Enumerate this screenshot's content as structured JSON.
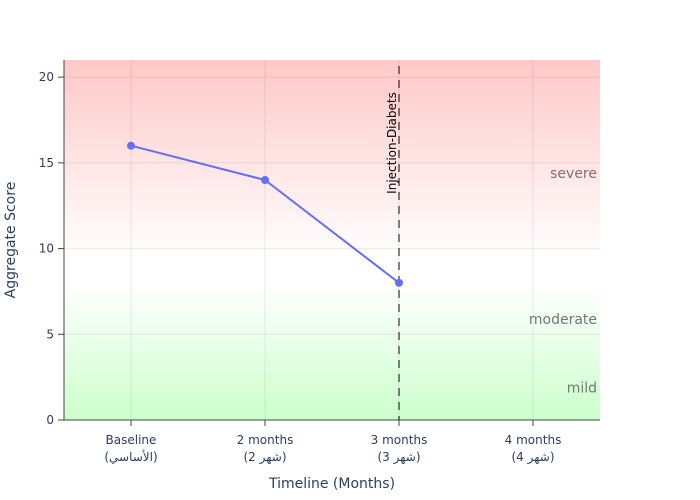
{
  "chart_data": {
    "type": "line",
    "xlabel": "Timeline (Months)",
    "ylabel": "Aggregate Score",
    "ylim": [
      0,
      21
    ],
    "y_ticks": [
      0,
      5,
      10,
      15,
      20
    ],
    "grid": true,
    "categories": [
      {
        "line1": "Baseline",
        "line2": "(الأساسي)"
      },
      {
        "line1": "2 months",
        "line2": "(شهر 2)"
      },
      {
        "line1": "3 months",
        "line2": "(شهر 3)"
      },
      {
        "line1": "4 months",
        "line2": "(شهر 4)"
      }
    ],
    "series": [
      {
        "values": [
          16,
          14,
          8,
          null
        ],
        "color": "#636efa"
      }
    ],
    "zones": [
      {
        "label": "severe",
        "y": 14.4,
        "color": "#8a6a6a"
      },
      {
        "label": "moderate",
        "y": 5.9,
        "color": "#6b7c6b"
      },
      {
        "label": "mild",
        "y": 1.9,
        "color": "#6b7c6b"
      }
    ],
    "vertical_marker": {
      "category_index": 2,
      "label": "Injection-Diabets"
    },
    "background": {
      "top_color": "#ffc8c8",
      "middle_color": "#ffffff",
      "bottom_color": "#ccffcc"
    }
  }
}
